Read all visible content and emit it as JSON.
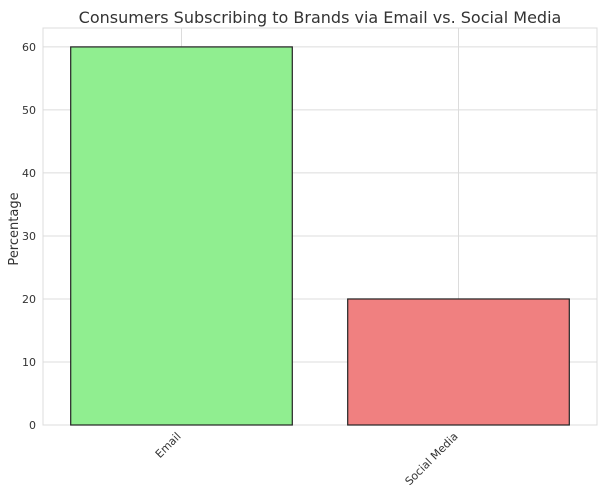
{
  "chart_data": {
    "type": "bar",
    "title": "Consumers Subscribing to Brands via Email vs. Social Media",
    "xlabel": "",
    "ylabel": "Percentage",
    "categories": [
      "Email",
      "Social Media"
    ],
    "values": [
      60,
      20
    ],
    "colors": [
      "#90ee90",
      "#f08080"
    ],
    "edge_color": "#222222",
    "ylim": [
      0,
      63
    ],
    "yticks": [
      0,
      10,
      20,
      30,
      40,
      50,
      60
    ],
    "grid": true,
    "legend": "none"
  }
}
